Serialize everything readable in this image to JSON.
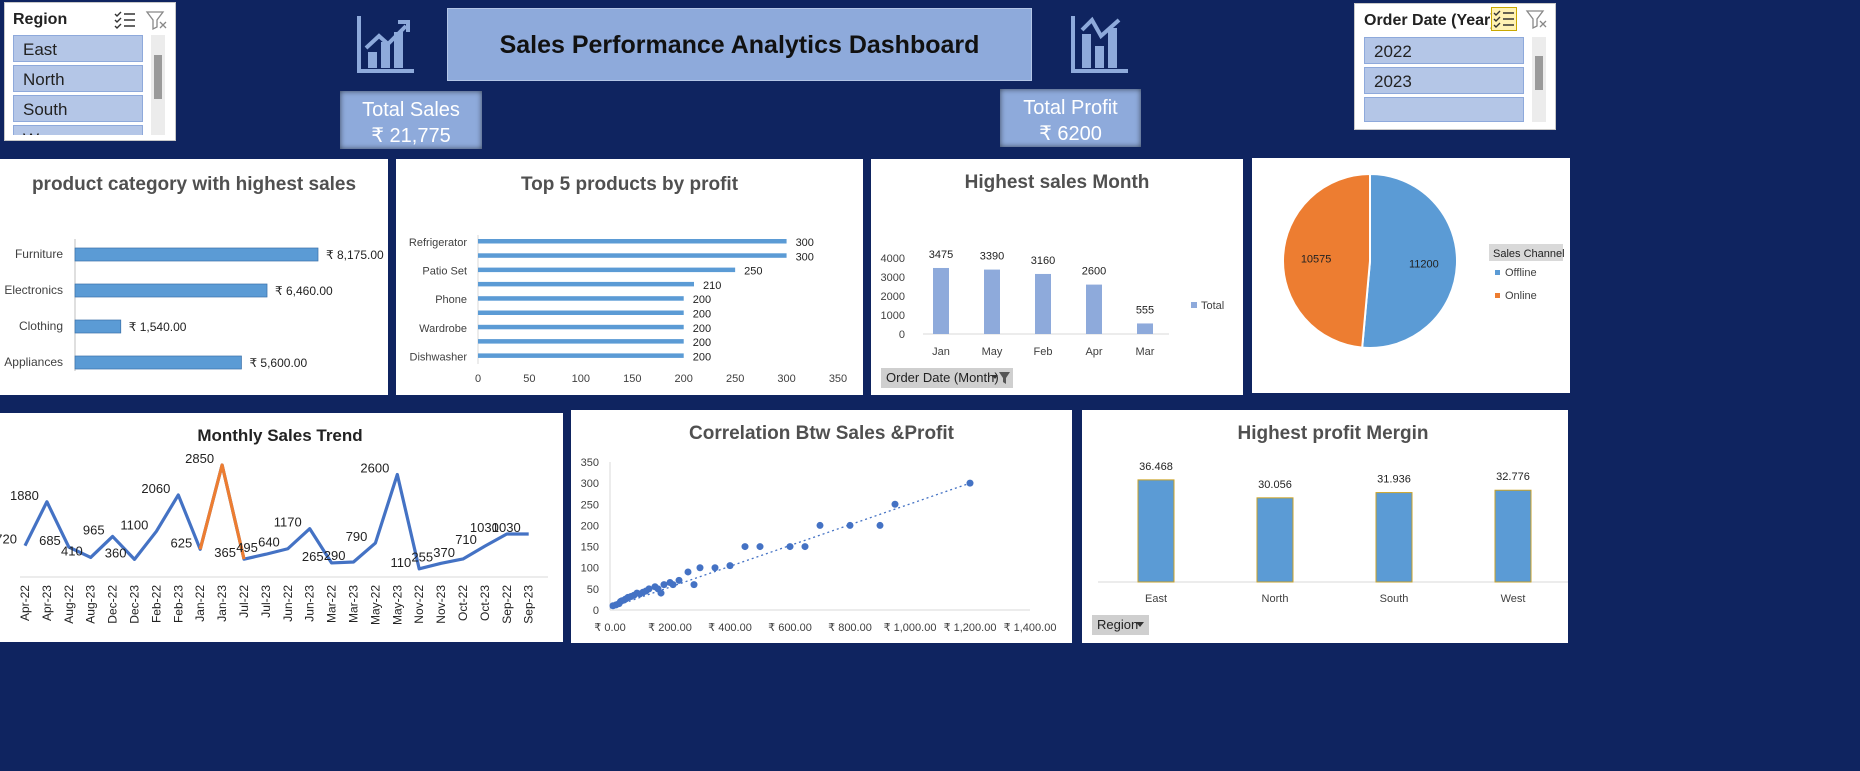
{
  "dashboard": {
    "title": "Sales Performance Analytics Dashboard",
    "total_sales_label": "Total Sales",
    "total_sales_value": "₹ 21,775",
    "total_profit_label": "Total Profit",
    "total_profit_value": "₹ 6200"
  },
  "region_slicer": {
    "title": "Region",
    "items": [
      "East",
      "North",
      "South",
      "W"
    ]
  },
  "year_slicer": {
    "title": "Order Date (Year)",
    "items": [
      "2022",
      "2023",
      ""
    ]
  },
  "colors": {
    "background": "#0f2460",
    "bar_blue": "#5b9bd5",
    "bar_light": "#8eaadb",
    "orange": "#ed7d31",
    "line_blue": "#4472c4"
  },
  "chart_data": [
    {
      "id": "category",
      "type": "bar",
      "orientation": "horizontal",
      "title": "product category with highest sales",
      "categories": [
        "Furniture",
        "Electronics",
        "Clothing",
        "Appliances"
      ],
      "values": [
        8175,
        6460,
        1540,
        5600
      ],
      "value_labels": [
        "₹ 8,175.00",
        "₹ 6,460.00",
        "₹ 1,540.00",
        "₹ 5,600.00"
      ],
      "xlim": [
        0,
        8175
      ]
    },
    {
      "id": "top5",
      "type": "bar",
      "orientation": "horizontal",
      "title": "Top 5 products by profit",
      "categories": [
        "Refrigerator",
        "",
        "Patio Set",
        "",
        "Phone",
        "",
        "Wardrobe",
        "",
        "Dishwasher"
      ],
      "values": [
        300,
        300,
        250,
        210,
        200,
        200,
        200,
        200,
        200
      ],
      "xticks": [
        "0",
        "50",
        "100",
        "150",
        "200",
        "250",
        "300",
        "350"
      ],
      "xlim": [
        0,
        350
      ]
    },
    {
      "id": "month",
      "type": "bar",
      "title": "Highest sales Month",
      "categories": [
        "Jan",
        "May",
        "Feb",
        "Apr",
        "Mar"
      ],
      "values": [
        3475,
        3390,
        3160,
        2600,
        555
      ],
      "yticks": [
        "0",
        "1000",
        "2000",
        "3000",
        "4000"
      ],
      "ylim": [
        0,
        4000
      ],
      "legend": "Total",
      "filter_label": "Order Date (Month)"
    },
    {
      "id": "channel",
      "type": "pie",
      "legend_title": "Sales Channel",
      "slices": [
        {
          "name": "Offline",
          "value": 11200,
          "color": "#5b9bd5"
        },
        {
          "name": "Online",
          "value": 10575,
          "color": "#ed7d31"
        }
      ]
    },
    {
      "id": "trend",
      "type": "line",
      "title": "Monthly Sales Trend",
      "categories": [
        "Apr-22",
        "Apr-23",
        "Aug-22",
        "Aug-23",
        "Dec-22",
        "Dec-23",
        "Feb-22",
        "Feb-23",
        "Jan-22",
        "Jan-23",
        "Jul-22",
        "Jul-23",
        "Jun-22",
        "Jun-23",
        "Mar-22",
        "Mar-23",
        "May-22",
        "May-23",
        "Nov-22",
        "Nov-23",
        "Oct-22",
        "Oct-23",
        "Sep-22",
        "Sep-23"
      ],
      "values": [
        720,
        1880,
        685,
        410,
        965,
        360,
        1100,
        2060,
        625,
        2850,
        365,
        495,
        640,
        1170,
        265,
        290,
        790,
        2600,
        110,
        255,
        370,
        710,
        1030,
        1030
      ],
      "highlight_range": [
        8,
        10
      ],
      "ylim": [
        0,
        3000
      ]
    },
    {
      "id": "scatter",
      "type": "scatter",
      "title": "Correlation Btw Sales &Profit",
      "xlabel": "",
      "ylabel": "",
      "xticks": [
        "₹ 0.00",
        "₹ 200.00",
        "₹ 400.00",
        "₹ 600.00",
        "₹ 800.00",
        "₹ 1,000.00",
        "₹ 1,200.00",
        "₹ 1,400.00"
      ],
      "yticks": [
        "0",
        "50",
        "100",
        "150",
        "200",
        "250",
        "300",
        "350"
      ],
      "xlim": [
        0,
        1400
      ],
      "ylim": [
        0,
        350
      ],
      "points": [
        [
          10,
          10
        ],
        [
          20,
          12
        ],
        [
          30,
          15
        ],
        [
          35,
          20
        ],
        [
          40,
          22
        ],
        [
          50,
          25
        ],
        [
          55,
          27
        ],
        [
          60,
          30
        ],
        [
          70,
          32
        ],
        [
          80,
          35
        ],
        [
          90,
          40
        ],
        [
          100,
          38
        ],
        [
          110,
          42
        ],
        [
          120,
          45
        ],
        [
          130,
          50
        ],
        [
          150,
          55
        ],
        [
          160,
          50
        ],
        [
          170,
          40
        ],
        [
          180,
          60
        ],
        [
          200,
          65
        ],
        [
          210,
          60
        ],
        [
          230,
          70
        ],
        [
          260,
          90
        ],
        [
          280,
          60
        ],
        [
          300,
          100
        ],
        [
          350,
          100
        ],
        [
          400,
          105
        ],
        [
          450,
          150
        ],
        [
          500,
          150
        ],
        [
          600,
          150
        ],
        [
          650,
          150
        ],
        [
          700,
          200
        ],
        [
          800,
          200
        ],
        [
          900,
          200
        ],
        [
          950,
          250
        ],
        [
          1200,
          300
        ]
      ],
      "trendline": [
        [
          0,
          5
        ],
        [
          1200,
          300
        ]
      ]
    },
    {
      "id": "margin",
      "type": "bar",
      "title": "Highest profit Mergin",
      "categories": [
        "East",
        "North",
        "South",
        "West"
      ],
      "values": [
        36.468,
        30.056,
        31.936,
        32.776
      ],
      "ylim": [
        0,
        40
      ],
      "filter_label": "Region"
    }
  ]
}
